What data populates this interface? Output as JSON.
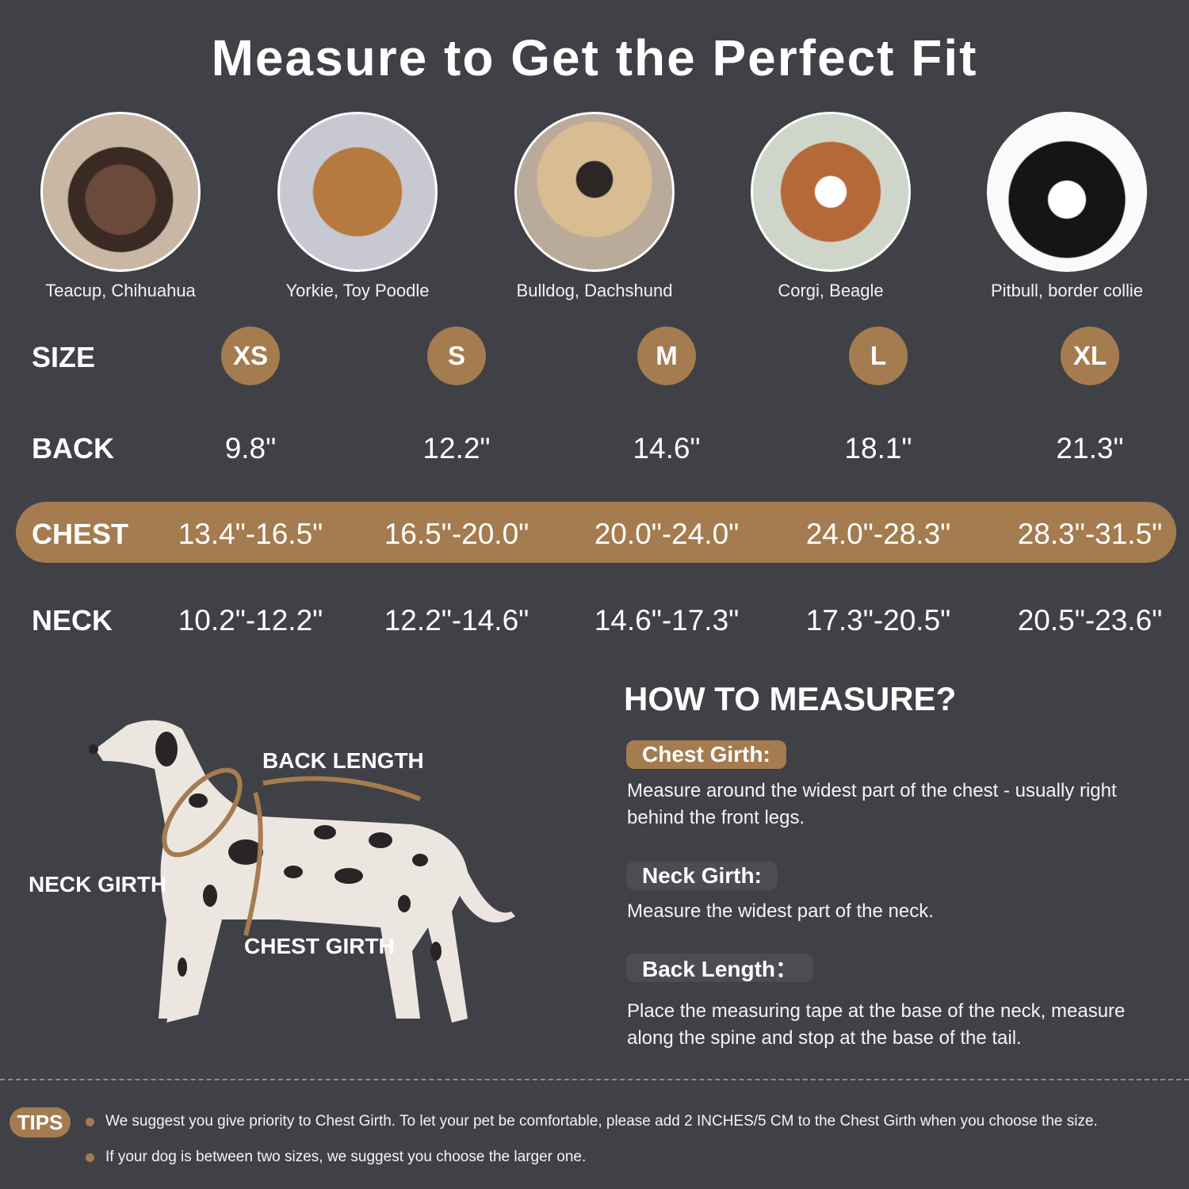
{
  "title": "Measure to Get the Perfect Fit",
  "accent": "#a57c4f",
  "background": "#404146",
  "breeds": [
    "Teacup, Chihuahua",
    "Yorkie, Toy Poodle",
    "Bulldog, Dachshund",
    "Corgi, Beagle",
    "Pitbull, border collie"
  ],
  "table": {
    "row_labels": {
      "size": "SIZE",
      "back": "BACK",
      "chest": "CHEST",
      "neck": "NECK"
    },
    "sizes": [
      "XS",
      "S",
      "M",
      "L",
      "XL"
    ],
    "back": [
      "9.8\"",
      "12.2\"",
      "14.6\"",
      "18.1\"",
      "21.3\""
    ],
    "chest": [
      "13.4\"-16.5\"",
      "16.5\"-20.0\"",
      "20.0\"-24.0\"",
      "24.0\"-28.3\"",
      "28.3\"-31.5\""
    ],
    "neck": [
      "10.2\"-12.2\"",
      "12.2\"-14.6\"",
      "14.6\"-17.3\"",
      "17.3\"-20.5\"",
      "20.5\"-23.6\""
    ]
  },
  "diagram": {
    "back_length": "BACK LENGTH",
    "neck_girth": "NECK GIRTH",
    "chest_girth": "CHEST GIRTH"
  },
  "how_to": {
    "heading": "HOW TO MEASURE?",
    "items": [
      {
        "label": "Chest Girth:",
        "text": "Measure around the widest part of the chest - usually right behind the front legs."
      },
      {
        "label": "Neck Girth:",
        "text": "Measure the widest part of the neck."
      },
      {
        "label": "Back Length：",
        "text": "Place the measuring tape at the base of the neck, measure along the spine and stop at the base of the tail."
      }
    ]
  },
  "tips": {
    "label": "TIPS",
    "items": [
      "We suggest you give priority to Chest Girth. To let your pet be comfortable, please add 2 INCHES/5 CM to the Chest Girth when you choose the size.",
      "If your dog is between two sizes, we suggest you choose the larger one."
    ]
  }
}
